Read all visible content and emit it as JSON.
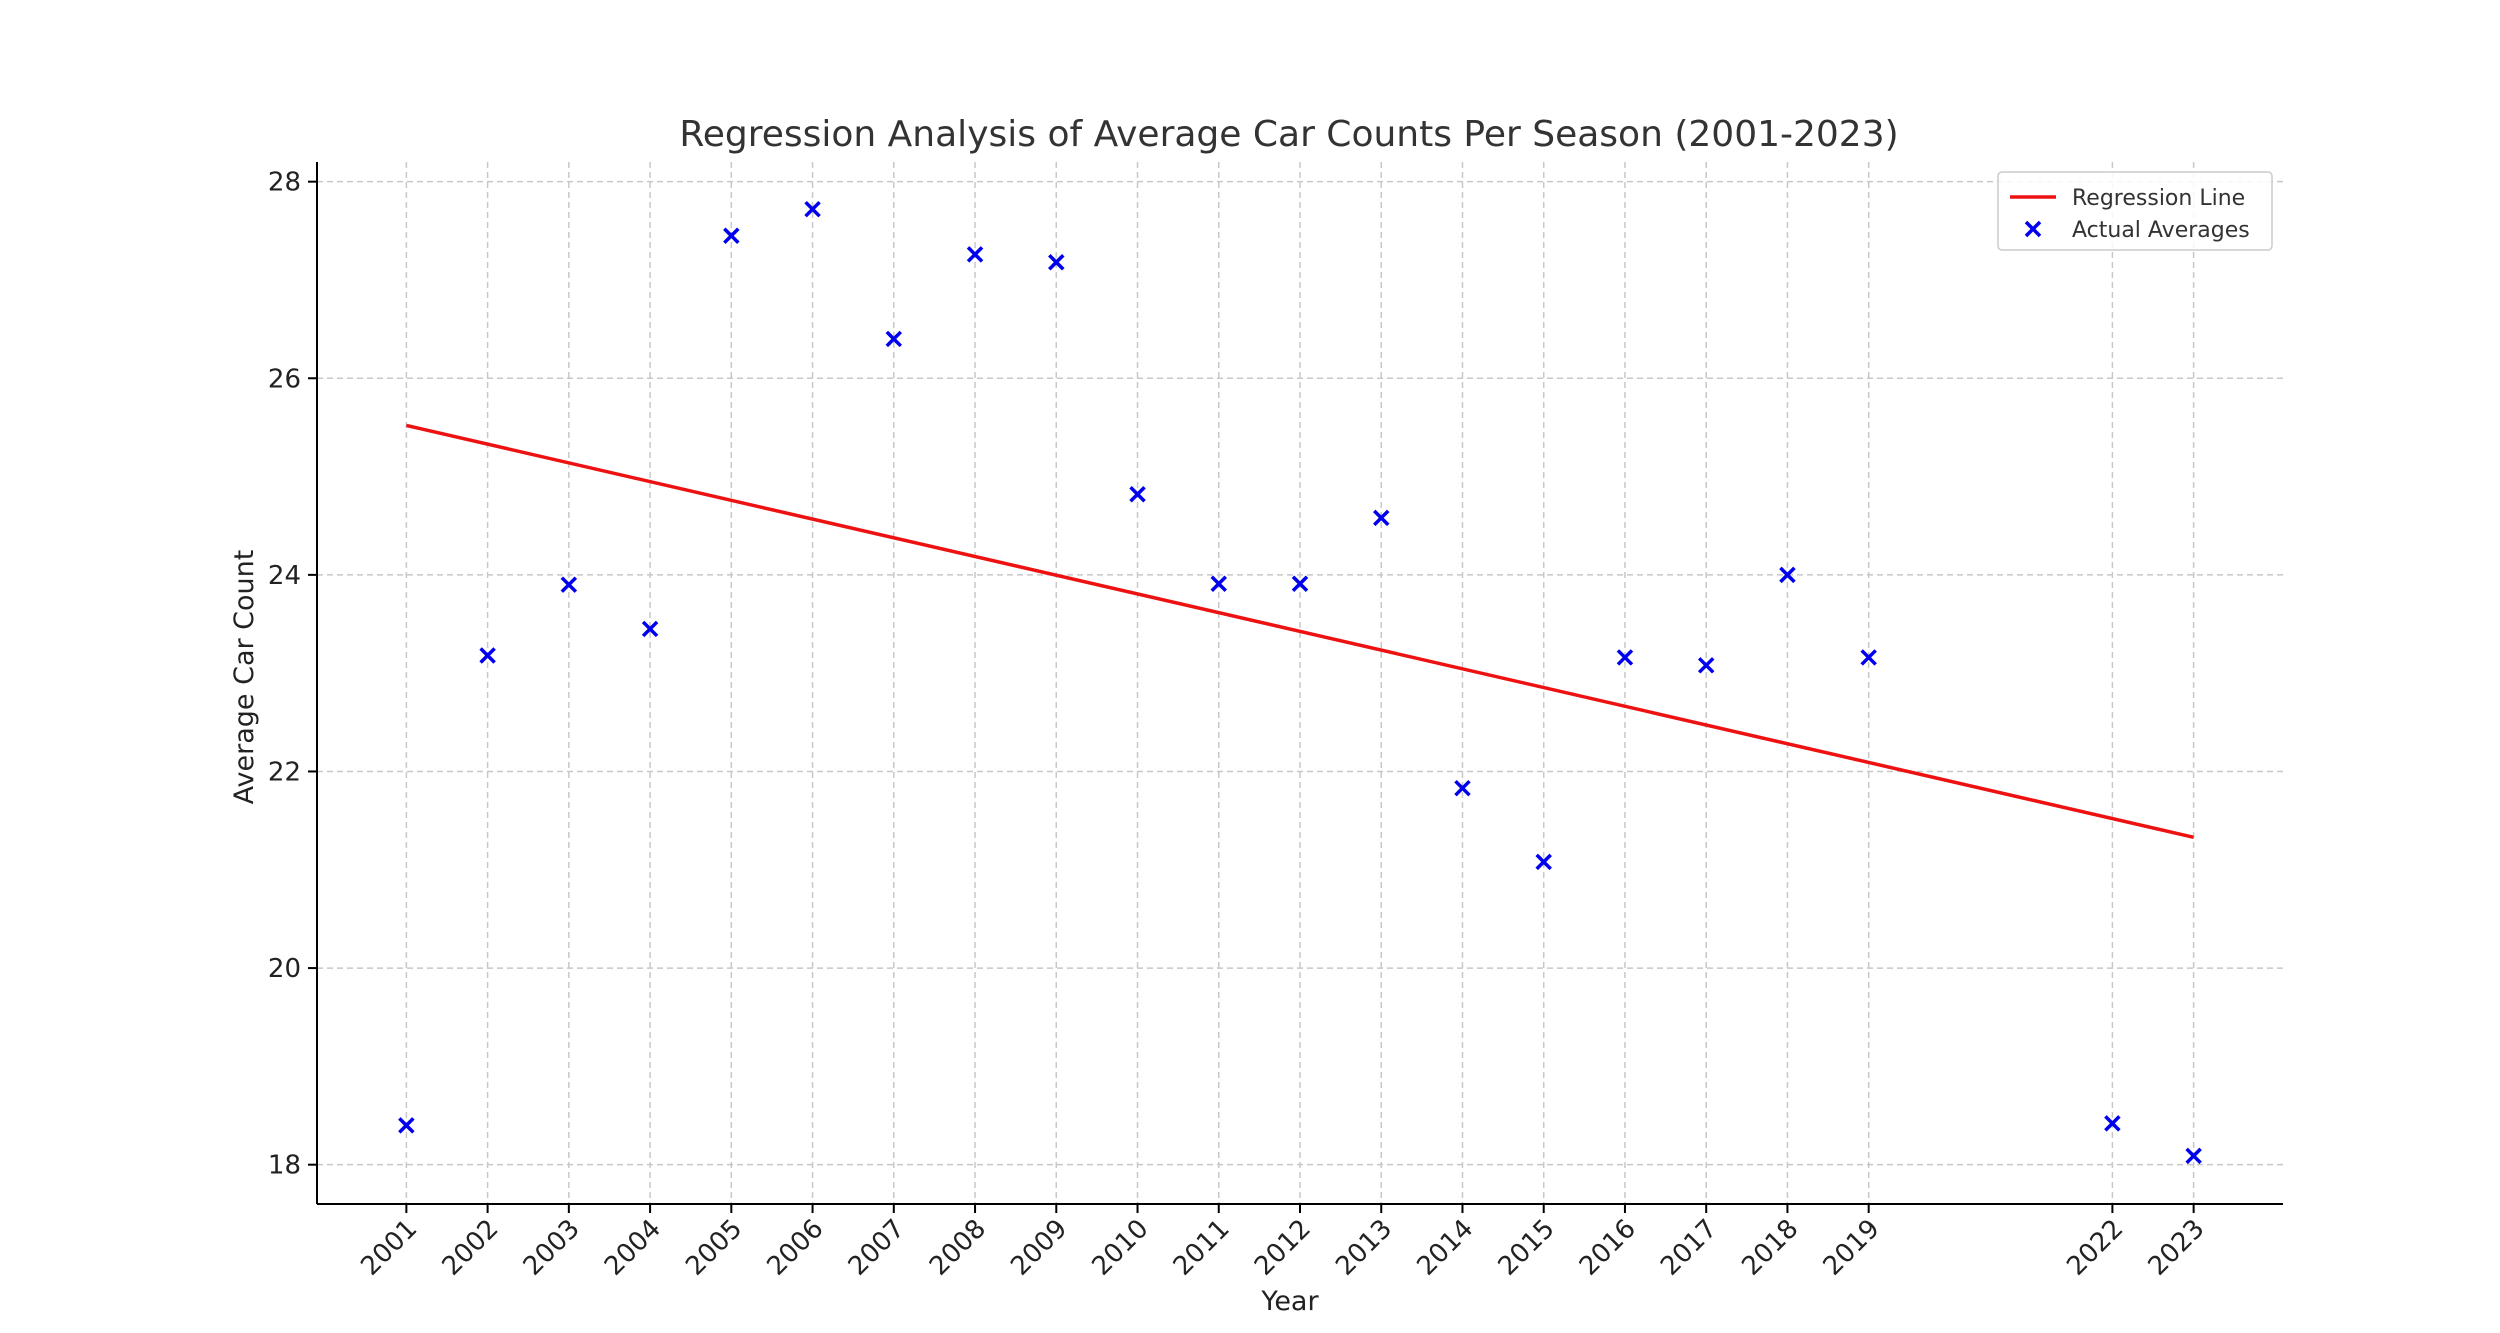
{
  "chart_data": {
    "type": "scatter",
    "title": "Regression Analysis of Average Car Counts Per Season (2001-2023)",
    "xlabel": "Year",
    "ylabel": "Average Car Count",
    "ylim": [
      17.6,
      28.2
    ],
    "yticks": [
      18,
      20,
      22,
      24,
      26,
      28
    ],
    "xlim": [
      1999.9,
      2024.1
    ],
    "grid": true,
    "legend_placement": "top-right",
    "x": [
      2001,
      2002,
      2003,
      2004,
      2005,
      2006,
      2007,
      2008,
      2009,
      2010,
      2011,
      2012,
      2013,
      2014,
      2015,
      2016,
      2017,
      2018,
      2019,
      2022,
      2023
    ],
    "series": [
      {
        "name": "Actual Averages",
        "kind": "scatter",
        "marker": "x",
        "color": "#0000ee",
        "x": [
          2001,
          2002,
          2003,
          2004,
          2005,
          2006,
          2007,
          2008,
          2009,
          2010,
          2011,
          2012,
          2013,
          2014,
          2015,
          2016,
          2017,
          2018,
          2019,
          2022,
          2023
        ],
        "values": [
          18.4,
          23.18,
          23.9,
          23.45,
          27.45,
          27.72,
          26.4,
          27.26,
          27.18,
          24.82,
          23.91,
          23.91,
          24.58,
          21.83,
          21.08,
          23.16,
          23.08,
          24.0,
          23.16,
          18.42,
          18.09
        ]
      },
      {
        "name": "Regression Line",
        "kind": "line",
        "color": "#ee1111",
        "x": [
          2001,
          2023
        ],
        "values": [
          25.52,
          21.33
        ]
      }
    ]
  }
}
